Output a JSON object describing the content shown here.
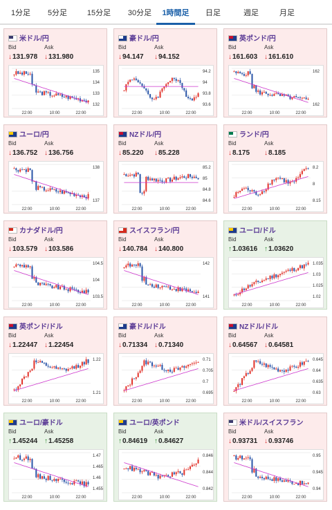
{
  "tabs": [
    {
      "label": "1分足",
      "active": false
    },
    {
      "label": "5分足",
      "active": false
    },
    {
      "label": "15分足",
      "active": false
    },
    {
      "label": "30分足",
      "active": false
    },
    {
      "label": "1時間足",
      "active": true
    },
    {
      "label": "日足",
      "active": false
    },
    {
      "label": "週足",
      "active": false
    },
    {
      "label": "月足",
      "active": false
    }
  ],
  "labels": {
    "bid": "Bid",
    "ask": "Ask"
  },
  "colors": {
    "down": "#d62a2a",
    "up": "#2e8b2e",
    "title": "#5a3a95",
    "ma": "#cc33cc",
    "bull": "#e2332b",
    "bear": "#2a55a8"
  },
  "cards": [
    {
      "pair": "米ドル/円",
      "flag": "us",
      "dir": "down",
      "bid": "131.978",
      "ask": "131.980",
      "chart_data": {
        "type": "candlestick",
        "x_ticks": [
          "22:00",
          "10:00",
          "22:00"
        ],
        "y_ticks": [
          "135",
          "134",
          "133",
          "132"
        ],
        "ylim": [
          131.8,
          135.3
        ],
        "shape": "drop_down",
        "ma": "down"
      }
    },
    {
      "pair": "豪ドル/円",
      "flag": "au",
      "dir": "down",
      "bid": "94.147",
      "ask": "94.152",
      "chart_data": {
        "type": "candlestick",
        "x_ticks": [
          "22:00",
          "10:00",
          "22:00"
        ],
        "y_ticks": [
          "94.2",
          "94",
          "93.8",
          "93.6"
        ],
        "ylim": [
          93.5,
          94.35
        ],
        "shape": "choppy",
        "ma": "flat"
      }
    },
    {
      "pair": "英ポンド/円",
      "flag": "gb",
      "dir": "down",
      "bid": "161.603",
      "ask": "161.610",
      "chart_data": {
        "type": "candlestick",
        "x_ticks": [
          "22:00",
          "10:00",
          "22:00"
        ],
        "y_ticks": [
          "162",
          "162"
        ],
        "ylim": [
          161.4,
          163.2
        ],
        "shape": "drop_down",
        "ma": "down"
      }
    },
    {
      "pair": "ユーロ/円",
      "flag": "eu",
      "dir": "down",
      "bid": "136.752",
      "ask": "136.756",
      "chart_data": {
        "type": "candlestick",
        "x_ticks": [
          "22:00",
          "10:00",
          "22:00"
        ],
        "y_ticks": [
          "138",
          "137"
        ],
        "ylim": [
          136.6,
          138.8
        ],
        "shape": "drop_down",
        "ma": "down"
      }
    },
    {
      "pair": "NZドル/円",
      "flag": "nz",
      "dir": "down",
      "bid": "85.220",
      "ask": "85.228",
      "chart_data": {
        "type": "candlestick",
        "x_ticks": [
          "22:00",
          "10:00",
          "22:00"
        ],
        "y_ticks": [
          "85.2",
          "85",
          "84.8",
          "84.6"
        ],
        "ylim": [
          84.5,
          85.35
        ],
        "shape": "low_then_flat",
        "ma": "flat"
      }
    },
    {
      "pair": "ランド/円",
      "flag": "za",
      "dir": "down",
      "bid": "8.175",
      "ask": "8.185",
      "chart_data": {
        "type": "candlestick",
        "x_ticks": [
          "22:00",
          "10:00",
          "22:00"
        ],
        "y_ticks": [
          "8.2",
          "8",
          "8.15"
        ],
        "ylim": [
          8.1,
          8.23
        ],
        "shape": "rising_choppy",
        "ma": "up"
      }
    },
    {
      "pair": "カナダドル/円",
      "flag": "ca",
      "dir": "down",
      "bid": "103.579",
      "ask": "103.586",
      "chart_data": {
        "type": "candlestick",
        "x_ticks": [
          "22:00",
          "10:00",
          "22:00"
        ],
        "y_ticks": [
          "104.5",
          "104",
          "103.5"
        ],
        "ylim": [
          103.3,
          104.9
        ],
        "shape": "drop_down",
        "ma": "down"
      }
    },
    {
      "pair": "スイスフラン/円",
      "flag": "ch",
      "dir": "down",
      "bid": "140.784",
      "ask": "140.800",
      "chart_data": {
        "type": "candlestick",
        "x_ticks": [
          "22:00",
          "10:00",
          "22:00"
        ],
        "y_ticks": [
          "142",
          "141"
        ],
        "ylim": [
          140.6,
          142.4
        ],
        "shape": "drop_down",
        "ma": "down"
      }
    },
    {
      "pair": "ユーロ/ドル",
      "flag": "eu",
      "dir": "up",
      "bid": "1.03616",
      "ask": "1.03620",
      "chart_data": {
        "type": "candlestick",
        "x_ticks": [
          "22:00",
          "10:00",
          "22:00"
        ],
        "y_ticks": [
          "1.035",
          "1.03",
          "1.025",
          "1.02"
        ],
        "ylim": [
          1.018,
          1.038
        ],
        "shape": "rise_up",
        "ma": "up"
      }
    },
    {
      "pair": "英ポンド/ドル",
      "flag": "gb",
      "dir": "down",
      "bid": "1.22447",
      "ask": "1.22454",
      "chart_data": {
        "type": "candlestick",
        "x_ticks": [
          "22:00",
          "10:00",
          "22:00"
        ],
        "y_ticks": [
          "1.22",
          "1.21"
        ],
        "ylim": [
          1.205,
          1.228
        ],
        "shape": "rise_plateau",
        "ma": "up"
      }
    },
    {
      "pair": "豪ドル/ドル",
      "flag": "au",
      "dir": "down",
      "bid": "0.71334",
      "ask": "0.71340",
      "chart_data": {
        "type": "candlestick",
        "x_ticks": [
          "22:00",
          "10:00",
          "22:00"
        ],
        "y_ticks": [
          "0.71",
          "0.705",
          "0.7",
          "0.695"
        ],
        "ylim": [
          0.693,
          0.714
        ],
        "shape": "rise_plateau",
        "ma": "up"
      }
    },
    {
      "pair": "NZドル/ドル",
      "flag": "nz",
      "dir": "down",
      "bid": "0.64567",
      "ask": "0.64581",
      "chart_data": {
        "type": "candlestick",
        "x_ticks": [
          "22:00",
          "10:00",
          "22:00"
        ],
        "y_ticks": [
          "0.645",
          "0.64",
          "0.635",
          "0.63"
        ],
        "ylim": [
          0.628,
          0.648
        ],
        "shape": "rise_plateau",
        "ma": "up"
      }
    },
    {
      "pair": "ユーロ/豪ドル",
      "flag": "eu",
      "dir": "up",
      "bid": "1.45244",
      "ask": "1.45258",
      "chart_data": {
        "type": "candlestick",
        "x_ticks": [
          "22:00",
          "10:00",
          "22:00"
        ],
        "y_ticks": [
          "1.47",
          "1.465",
          "1.46",
          "1.455"
        ],
        "ylim": [
          1.451,
          1.472
        ],
        "shape": "drop_down",
        "ma": "down"
      }
    },
    {
      "pair": "ユーロ/英ポンド",
      "flag": "eu",
      "dir": "up",
      "bid": "0.84619",
      "ask": "0.84627",
      "chart_data": {
        "type": "candlestick",
        "x_ticks": [
          "22:00",
          "10:00",
          "22:00"
        ],
        "y_ticks": [
          "0.846",
          "0.844",
          "0.842"
        ],
        "ylim": [
          0.8405,
          0.8475
        ],
        "shape": "dip_recover",
        "ma": "down"
      }
    },
    {
      "pair": "米ドル/スイスフラン",
      "flag": "us",
      "dir": "down",
      "bid": "0.93731",
      "ask": "0.93746",
      "chart_data": {
        "type": "candlestick",
        "x_ticks": [
          "22:00",
          "10:00",
          "22:00"
        ],
        "y_ticks": [
          "0.95",
          "0.945",
          "0.94"
        ],
        "ylim": [
          0.9365,
          0.9525
        ],
        "shape": "drop_down",
        "ma": "down"
      }
    }
  ]
}
